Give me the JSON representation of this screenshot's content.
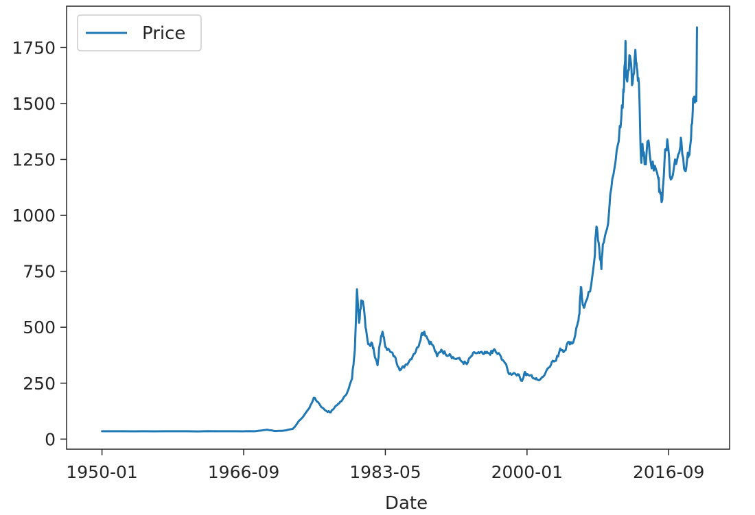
{
  "chart_data": {
    "type": "line",
    "title": "",
    "xlabel": "Date",
    "ylabel": "",
    "x_tick_labels": [
      "1950-01",
      "1966-09",
      "1983-05",
      "2000-01",
      "2016-09"
    ],
    "x_ticks": [
      "1950-01",
      "1966-09",
      "1983-05",
      "2000-01",
      "2016-09"
    ],
    "y_ticks": [
      0,
      250,
      500,
      750,
      1000,
      1250,
      1500,
      1750
    ],
    "y_tick_labels": [
      "0",
      "250",
      "500",
      "750",
      "1000",
      "1250",
      "1500",
      "1750"
    ],
    "xlim": [
      "1945-11",
      "2023-11"
    ],
    "ylim": [
      -45,
      1935
    ],
    "grid": false,
    "legend": {
      "position": "top-left",
      "entries": [
        "Price"
      ]
    },
    "colors": {
      "line": "#1f77b4",
      "axes": "#262626",
      "legend_border": "#cccccc"
    },
    "series": [
      {
        "name": "Price",
        "x": [
          "1950-01",
          "1955-01",
          "1960-01",
          "1965-01",
          "1968-01",
          "1969-06",
          "1970-06",
          "1971-06",
          "1972-06",
          "1973-06",
          "1974-06",
          "1974-12",
          "1975-06",
          "1975-12",
          "1976-06",
          "1976-12",
          "1977-06",
          "1977-12",
          "1978-06",
          "1978-12",
          "1979-06",
          "1979-10",
          "1980-01",
          "1980-04",
          "1980-07",
          "1980-10",
          "1981-01",
          "1981-04",
          "1981-07",
          "1981-10",
          "1982-01",
          "1982-06",
          "1982-09",
          "1983-01",
          "1983-02",
          "1983-06",
          "1983-12",
          "1984-06",
          "1984-12",
          "1985-03",
          "1985-09",
          "1986-03",
          "1986-09",
          "1987-03",
          "1987-08",
          "1987-12",
          "1988-06",
          "1988-12",
          "1989-06",
          "1989-12",
          "1990-06",
          "1990-12",
          "1991-06",
          "1991-12",
          "1992-06",
          "1992-12",
          "1993-06",
          "1993-12",
          "1994-06",
          "1994-12",
          "1995-06",
          "1995-12",
          "1996-02",
          "1996-06",
          "1996-12",
          "1997-06",
          "1997-12",
          "1998-06",
          "1998-12",
          "1999-06",
          "1999-10",
          "1999-12",
          "2000-06",
          "2000-12",
          "2001-04",
          "2001-12",
          "2002-06",
          "2002-12",
          "2003-06",
          "2003-12",
          "2004-06",
          "2004-12",
          "2005-06",
          "2005-12",
          "2006-03",
          "2006-05",
          "2006-07",
          "2006-10",
          "2007-06",
          "2007-12",
          "2008-03",
          "2008-06",
          "2008-10",
          "2008-12",
          "2009-06",
          "2009-12",
          "2010-06",
          "2010-12",
          "2011-04",
          "2011-06",
          "2011-08",
          "2011-09",
          "2011-12",
          "2012-03",
          "2012-06",
          "2012-10",
          "2012-12",
          "2013-03",
          "2013-06",
          "2013-08",
          "2013-12",
          "2014-03",
          "2014-06",
          "2014-12",
          "2015-06",
          "2015-08",
          "2015-12",
          "2016-03",
          "2016-07",
          "2016-12",
          "2017-06",
          "2017-12",
          "2018-03",
          "2018-08",
          "2018-12",
          "2019-03",
          "2019-06",
          "2019-08",
          "2019-12",
          "2020-01"
        ],
        "y": [
          35,
          35,
          35,
          35,
          35,
          42,
          36,
          38,
          45,
          90,
          140,
          185,
          165,
          140,
          125,
          120,
          145,
          160,
          185,
          215,
          270,
          400,
          670,
          520,
          620,
          600,
          500,
          440,
          420,
          430,
          390,
          330,
          420,
          480,
          460,
          410,
          390,
          370,
          320,
          310,
          330,
          350,
          380,
          410,
          470,
          480,
          440,
          420,
          370,
          400,
          380,
          380,
          360,
          360,
          345,
          335,
          370,
          385,
          385,
          380,
          385,
          385,
          400,
          385,
          370,
          340,
          290,
          295,
          290,
          260,
          300,
          285,
          285,
          270,
          265,
          280,
          315,
          345,
          350,
          405,
          395,
          435,
          430,
          510,
          560,
          680,
          620,
          590,
          660,
          800,
          950,
          880,
          760,
          870,
          940,
          1120,
          1240,
          1400,
          1480,
          1580,
          1780,
          1620,
          1650,
          1700,
          1590,
          1740,
          1660,
          1590,
          1250,
          1320,
          1230,
          1330,
          1280,
          1200,
          1170,
          1120,
          1070,
          1240,
          1340,
          1160,
          1250,
          1280,
          1330,
          1200,
          1280,
          1300,
          1410,
          1520,
          1510,
          1840
        ]
      }
    ]
  }
}
